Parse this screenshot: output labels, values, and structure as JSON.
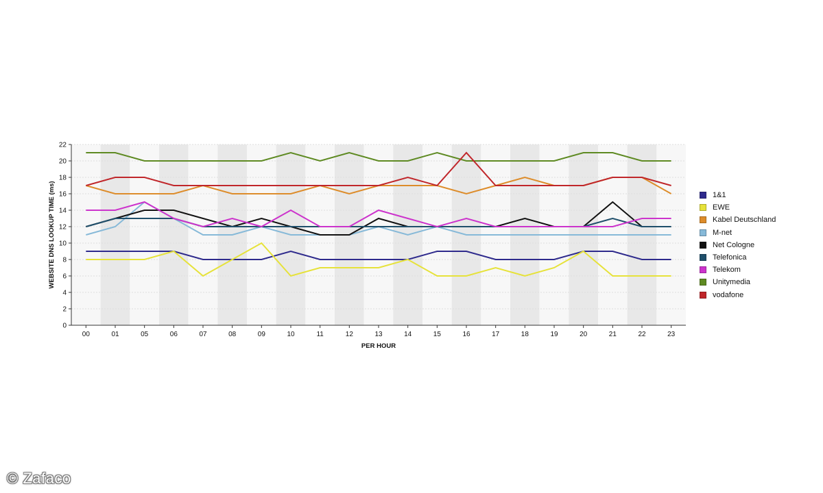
{
  "chart_data": {
    "type": "line",
    "xlabel": "PER HOUR",
    "ylabel": "WEBSITE DNS LOOKUP TIME (ms)",
    "categories": [
      "00",
      "01",
      "05",
      "06",
      "07",
      "08",
      "09",
      "10",
      "11",
      "12",
      "13",
      "14",
      "15",
      "16",
      "17",
      "18",
      "19",
      "20",
      "21",
      "22",
      "23"
    ],
    "ylim": [
      0,
      22
    ],
    "yticks": [
      0,
      2,
      4,
      6,
      8,
      10,
      12,
      14,
      16,
      18,
      20,
      22
    ],
    "grid": true,
    "legend_position": "right",
    "series": [
      {
        "name": "1&1",
        "color": "#2e2a8c",
        "values": [
          9,
          9,
          9,
          9,
          8,
          8,
          8,
          9,
          8,
          8,
          8,
          8,
          9,
          9,
          8,
          8,
          8,
          9,
          9,
          8,
          8
        ]
      },
      {
        "name": "EWE",
        "color": "#e6e23a",
        "values": [
          8,
          8,
          8,
          9,
          6,
          8,
          10,
          6,
          7,
          7,
          7,
          8,
          6,
          6,
          7,
          6,
          7,
          9,
          6,
          6,
          6
        ]
      },
      {
        "name": "Kabel Deutschland",
        "color": "#dd8c2a",
        "values": [
          17,
          16,
          16,
          16,
          17,
          16,
          16,
          16,
          17,
          16,
          17,
          17,
          17,
          16,
          17,
          18,
          17,
          17,
          18,
          18,
          16
        ]
      },
      {
        "name": "M-net",
        "color": "#86b9d8",
        "values": [
          11,
          12,
          15,
          13,
          11,
          11,
          12,
          11,
          11,
          11,
          12,
          11,
          12,
          11,
          11,
          11,
          11,
          11,
          11,
          11,
          11
        ]
      },
      {
        "name": "Net Cologne",
        "color": "#111111",
        "values": [
          12,
          13,
          14,
          14,
          13,
          12,
          13,
          12,
          11,
          11,
          13,
          12,
          12,
          12,
          12,
          13,
          12,
          12,
          15,
          12,
          12
        ]
      },
      {
        "name": "Telefonica",
        "color": "#1f4f6b",
        "values": [
          12,
          13,
          13,
          13,
          12,
          12,
          12,
          12,
          12,
          12,
          12,
          12,
          12,
          12,
          12,
          12,
          12,
          12,
          13,
          12,
          12
        ]
      },
      {
        "name": "Telekom",
        "color": "#cc33cc",
        "values": [
          14,
          14,
          15,
          13,
          12,
          13,
          12,
          14,
          12,
          12,
          14,
          13,
          12,
          13,
          12,
          12,
          12,
          12,
          12,
          13,
          13
        ]
      },
      {
        "name": "Unitymedia",
        "color": "#5e8a22",
        "values": [
          21,
          21,
          20,
          20,
          20,
          20,
          20,
          21,
          20,
          21,
          20,
          20,
          21,
          20,
          20,
          20,
          20,
          21,
          21,
          20,
          20
        ]
      },
      {
        "name": "vodafone",
        "color": "#c0262a",
        "values": [
          17,
          18,
          18,
          17,
          17,
          17,
          17,
          17,
          17,
          17,
          17,
          18,
          17,
          21,
          17,
          17,
          17,
          17,
          18,
          18,
          17
        ]
      }
    ]
  },
  "watermark": "© Zafaco"
}
